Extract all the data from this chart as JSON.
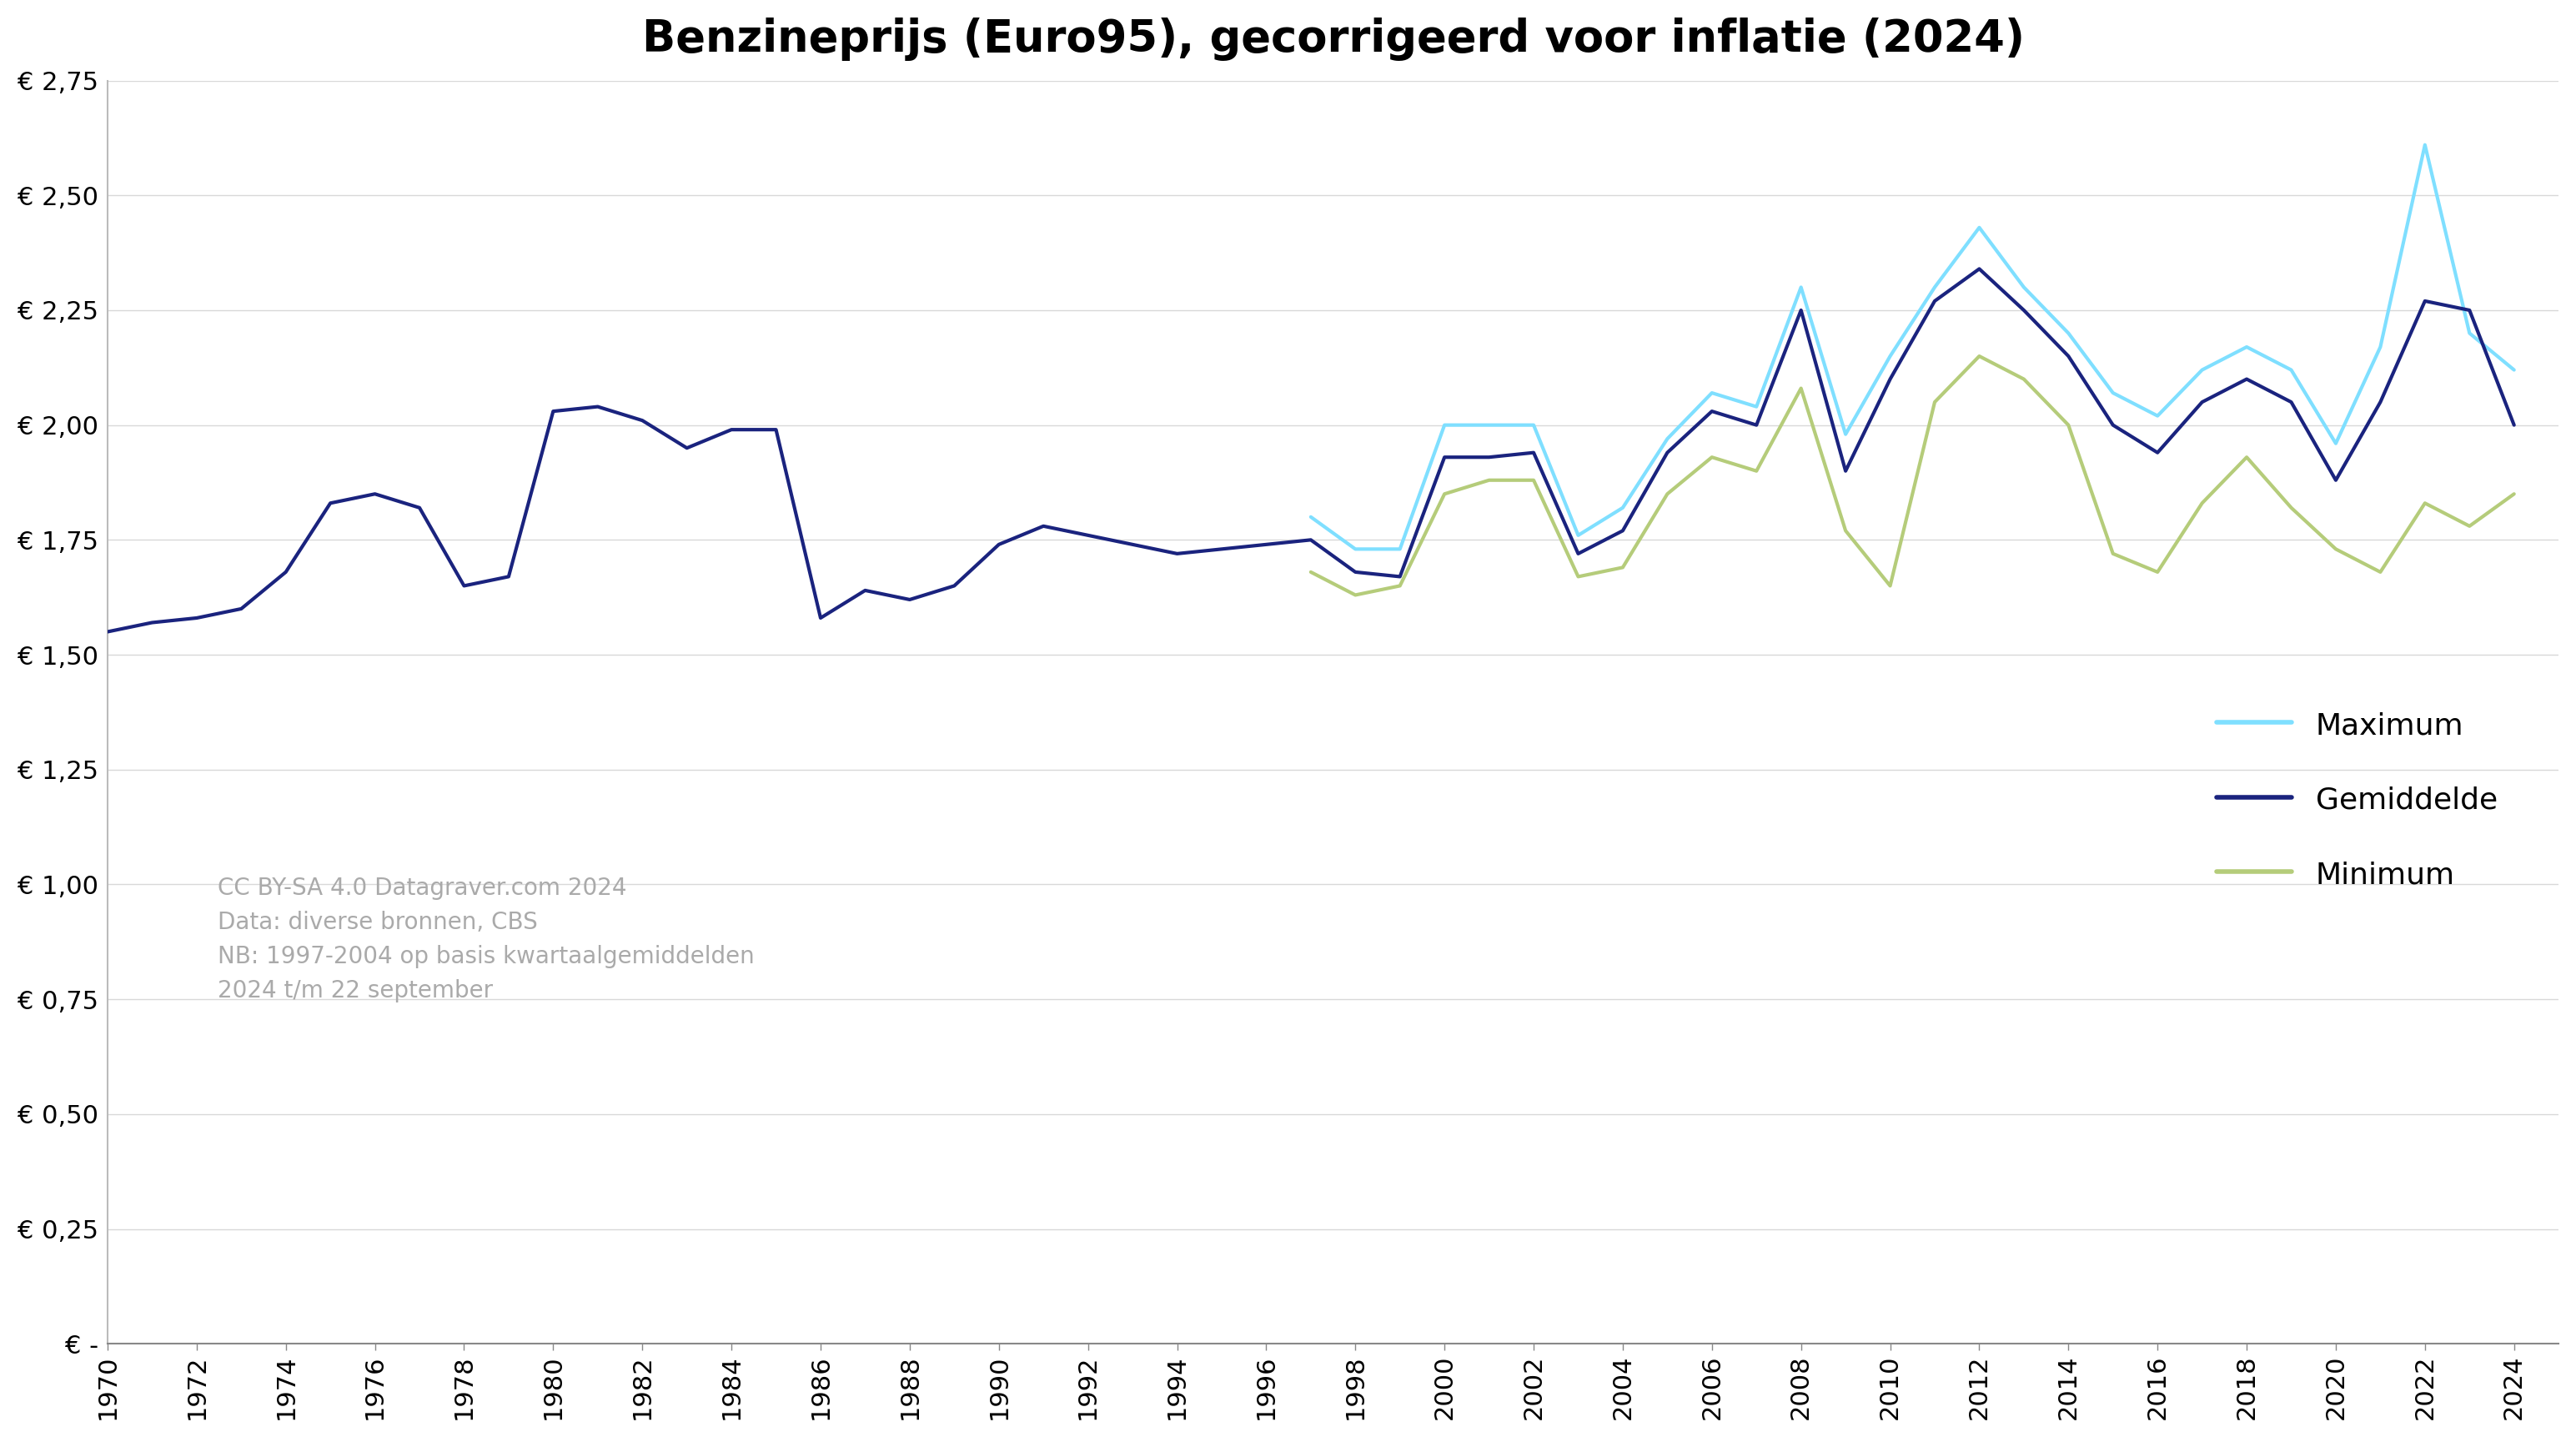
{
  "title": "Benzineprijs (Euro95), gecorrigeerd voor inflatie (2024)",
  "title_fontsize": 38,
  "background_color": "#ffffff",
  "grid_color": "#d8d8d8",
  "ylim": [
    0,
    2.75
  ],
  "ytick_step": 0.25,
  "annotation": "CC BY-SA 4.0 Datagraver.com 2024\nData: diverse bronnen, CBS\nNB: 1997-2004 op basis kwartaalgemiddelden\n2024 t/m 22 september",
  "annotation_color": "#aaaaaa",
  "annotation_fontsize": 20,
  "line_colors": {
    "maximum": "#7FDFFF",
    "gemiddelde": "#1a237e",
    "minimum": "#b5cc7a"
  },
  "line_widths": {
    "maximum": 3.0,
    "gemiddelde": 3.0,
    "minimum": 3.0
  },
  "legend_labels": [
    "Maximum",
    "Gemiddelde",
    "Minimum"
  ],
  "legend_fontsize": 26,
  "tick_fontsize": 22,
  "years_gemiddelde": [
    1970,
    1971,
    1972,
    1973,
    1974,
    1975,
    1976,
    1977,
    1978,
    1979,
    1980,
    1981,
    1982,
    1983,
    1984,
    1985,
    1986,
    1987,
    1988,
    1989,
    1990,
    1991,
    1992,
    1993,
    1994,
    1995,
    1996,
    1997,
    1998,
    1999,
    2000,
    2001,
    2002,
    2003,
    2004,
    2005,
    2006,
    2007,
    2008,
    2009,
    2010,
    2011,
    2012,
    2013,
    2014,
    2015,
    2016,
    2017,
    2018,
    2019,
    2020,
    2021,
    2022,
    2023,
    2024
  ],
  "values_gemiddelde": [
    1.55,
    1.57,
    1.58,
    1.6,
    1.68,
    1.83,
    1.85,
    1.82,
    1.65,
    1.67,
    2.03,
    2.04,
    2.01,
    1.95,
    1.99,
    1.99,
    1.58,
    1.64,
    1.62,
    1.65,
    1.74,
    1.78,
    1.76,
    1.74,
    1.72,
    1.73,
    1.74,
    1.75,
    1.68,
    1.67,
    1.93,
    1.93,
    1.94,
    1.72,
    1.77,
    1.94,
    2.03,
    2.0,
    2.25,
    1.9,
    2.1,
    2.27,
    2.34,
    2.25,
    2.15,
    2.0,
    1.94,
    2.05,
    2.1,
    2.05,
    1.88,
    2.05,
    2.27,
    2.25,
    2.0
  ],
  "years_maximum": [
    1997,
    1998,
    1999,
    2000,
    2001,
    2002,
    2003,
    2004,
    2005,
    2006,
    2007,
    2008,
    2009,
    2010,
    2011,
    2012,
    2013,
    2014,
    2015,
    2016,
    2017,
    2018,
    2019,
    2020,
    2021,
    2022,
    2023,
    2024
  ],
  "values_maximum": [
    1.8,
    1.73,
    1.73,
    2.0,
    2.0,
    2.0,
    1.76,
    1.82,
    1.97,
    2.07,
    2.04,
    2.3,
    1.98,
    2.15,
    2.3,
    2.43,
    2.3,
    2.2,
    2.07,
    2.02,
    2.12,
    2.17,
    2.12,
    1.96,
    2.17,
    2.61,
    2.2,
    2.12
  ],
  "years_minimum": [
    1997,
    1998,
    1999,
    2000,
    2001,
    2002,
    2003,
    2004,
    2005,
    2006,
    2007,
    2008,
    2009,
    2010,
    2011,
    2012,
    2013,
    2014,
    2015,
    2016,
    2017,
    2018,
    2019,
    2020,
    2021,
    2022,
    2023,
    2024
  ],
  "values_minimum": [
    1.68,
    1.63,
    1.65,
    1.85,
    1.88,
    1.88,
    1.67,
    1.69,
    1.85,
    1.93,
    1.9,
    2.08,
    1.77,
    1.65,
    2.05,
    2.15,
    2.1,
    2.0,
    1.72,
    1.68,
    1.83,
    1.93,
    1.82,
    1.73,
    1.68,
    1.83,
    1.78,
    1.85
  ]
}
